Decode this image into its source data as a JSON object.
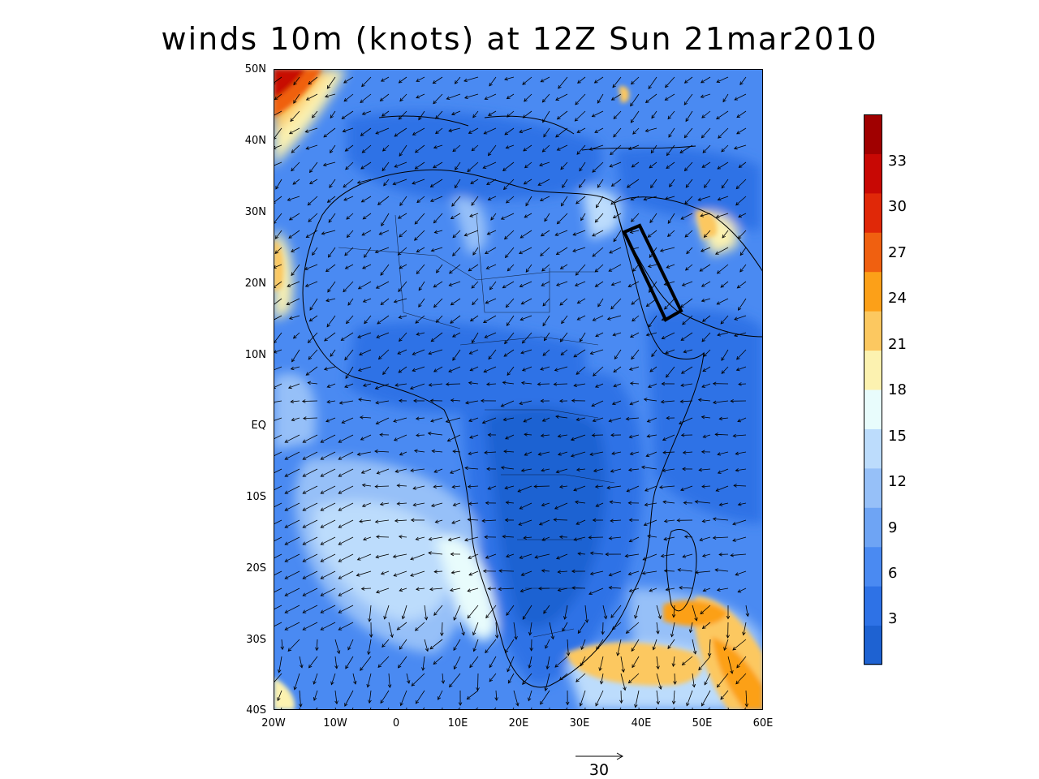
{
  "title": "winds 10m (knots) at 12Z Sun 21mar2010",
  "lat_labels": [
    "50N",
    "40N",
    "30N",
    "20N",
    "10N",
    "EQ",
    "10S",
    "20S",
    "30S",
    "40S"
  ],
  "lon_labels": [
    "20W",
    "10W",
    "0",
    "10E",
    "20E",
    "30E",
    "40E",
    "50E",
    "60E"
  ],
  "colorbar": {
    "labels": [
      "3",
      "6",
      "9",
      "12",
      "15",
      "18",
      "21",
      "24",
      "27",
      "30",
      "33"
    ],
    "colors": [
      "#1e62d2",
      "#2e72e6",
      "#4a8af2",
      "#6ea4f4",
      "#96c0f8",
      "#bcdcfc",
      "#e8fcfc",
      "#fcf2b0",
      "#fcc860",
      "#fca018",
      "#f06010",
      "#e02808",
      "#c80804",
      "#a00000"
    ]
  },
  "reference_vector": {
    "label": "30",
    "units": "knots"
  },
  "highlight_box": {
    "shape": "rectangle",
    "stroke": "#000000"
  },
  "map_extent": {
    "lon_min": -20,
    "lon_max": 60,
    "lat_min": -40,
    "lat_max": 50
  }
}
